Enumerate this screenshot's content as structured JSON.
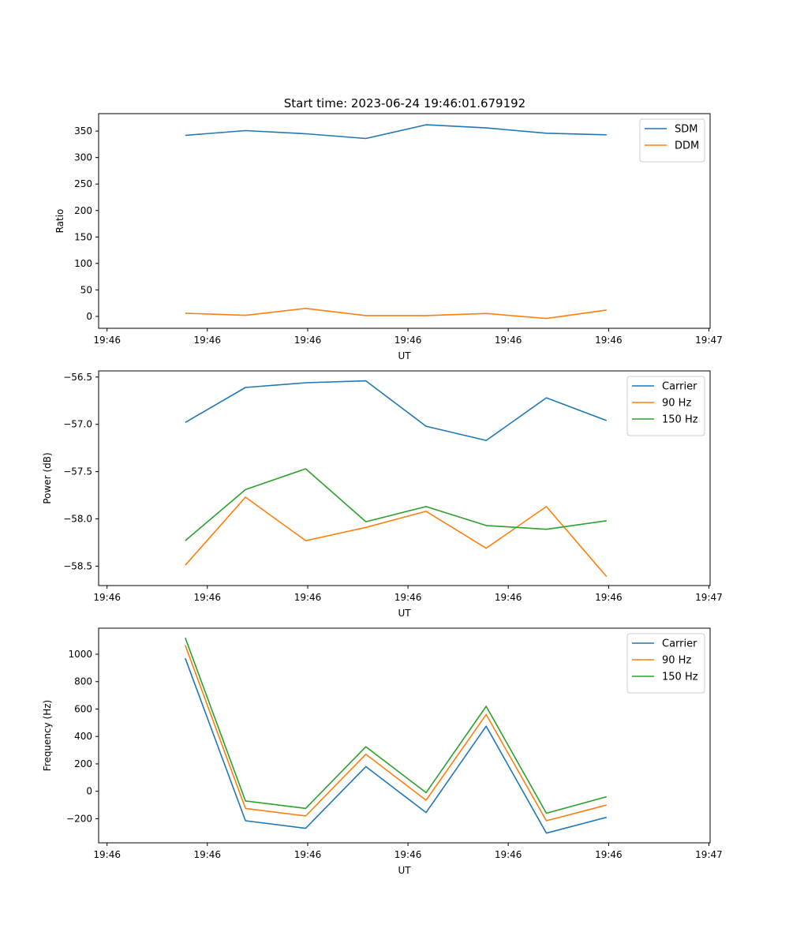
{
  "figure": {
    "title": "Start time: 2023-06-24 19:46:01.679192"
  },
  "chart_data": [
    {
      "type": "line",
      "title": "Start time: 2023-06-24 19:46:01.679192",
      "xlabel": "UT",
      "ylabel": "Ratio",
      "x": [
        0.65,
        1.15,
        1.65,
        2.15,
        2.65,
        3.15,
        3.65,
        4.15
      ],
      "xlim": [
        -0.07,
        5.01
      ],
      "xticks": [
        0,
        0.833,
        1.667,
        2.5,
        3.333,
        4.167,
        5.0
      ],
      "xtick_labels": [
        "19:46",
        "19:46",
        "19:46",
        "19:46",
        "19:46",
        "19:46",
        "19:47"
      ],
      "ylim": [
        -22.5,
        383
      ],
      "yticks": [
        0,
        50,
        100,
        150,
        200,
        250,
        300,
        350
      ],
      "ytick_labels": [
        "0",
        "50",
        "100",
        "150",
        "200",
        "250",
        "300",
        "350"
      ],
      "legend_position": "upper-right",
      "series": [
        {
          "name": "SDM",
          "color": "#1f77b4",
          "values": [
            342,
            351,
            345,
            336,
            362,
            356,
            346,
            343
          ]
        },
        {
          "name": "DDM",
          "color": "#ff7f0e",
          "values": [
            6,
            2,
            15,
            1.5,
            1.5,
            5.5,
            -4,
            12
          ]
        }
      ]
    },
    {
      "type": "line",
      "xlabel": "UT",
      "ylabel": "Power (dB)",
      "x": [
        0.65,
        1.15,
        1.65,
        2.15,
        2.65,
        3.15,
        3.65,
        4.15
      ],
      "xlim": [
        -0.07,
        5.01
      ],
      "xticks": [
        0,
        0.833,
        1.667,
        2.5,
        3.333,
        4.167,
        5.0
      ],
      "xtick_labels": [
        "19:46",
        "19:46",
        "19:46",
        "19:46",
        "19:46",
        "19:46",
        "19:47"
      ],
      "ylim": [
        -58.705,
        -56.435
      ],
      "yticks": [
        -58.5,
        -58.0,
        -57.5,
        -57.0,
        -56.5
      ],
      "ytick_labels": [
        "−58.5",
        "−58.0",
        "−57.5",
        "−57.0",
        "−56.5"
      ],
      "legend_position": "upper-right",
      "series": [
        {
          "name": "Carrier",
          "color": "#1f77b4",
          "values": [
            -56.98,
            -56.61,
            -56.56,
            -56.54,
            -57.02,
            -57.17,
            -56.72,
            -56.96
          ]
        },
        {
          "name": "90 Hz",
          "color": "#ff7f0e",
          "values": [
            -58.49,
            -57.77,
            -58.23,
            -58.09,
            -57.92,
            -58.31,
            -57.87,
            -58.61
          ]
        },
        {
          "name": "150 Hz",
          "color": "#2ca02c",
          "values": [
            -58.23,
            -57.69,
            -57.47,
            -58.03,
            -57.87,
            -58.07,
            -58.11,
            -58.02
          ]
        }
      ]
    },
    {
      "type": "line",
      "xlabel": "UT",
      "ylabel": "Frequency (Hz)",
      "x": [
        0.65,
        1.15,
        1.65,
        2.15,
        2.65,
        3.15,
        3.65,
        4.15
      ],
      "xlim": [
        -0.07,
        5.01
      ],
      "xticks": [
        0,
        0.833,
        1.667,
        2.5,
        3.333,
        4.167,
        5.0
      ],
      "xtick_labels": [
        "19:46",
        "19:46",
        "19:46",
        "19:46",
        "19:46",
        "19:46",
        "19:47"
      ],
      "ylim": [
        -376,
        1190
      ],
      "yticks": [
        -200,
        0,
        200,
        400,
        600,
        800,
        1000
      ],
      "ytick_labels": [
        "−200",
        "0",
        "200",
        "400",
        "600",
        "800",
        "1000"
      ],
      "legend_position": "upper-right",
      "series": [
        {
          "name": "Carrier",
          "color": "#1f77b4",
          "values": [
            970,
            -215,
            -270,
            180,
            -155,
            475,
            -305,
            -190
          ]
        },
        {
          "name": "90 Hz",
          "color": "#ff7f0e",
          "values": [
            1065,
            -125,
            -180,
            270,
            -65,
            560,
            -215,
            -100
          ]
        },
        {
          "name": "150 Hz",
          "color": "#2ca02c",
          "values": [
            1120,
            -70,
            -125,
            325,
            -10,
            620,
            -160,
            -40
          ]
        }
      ]
    }
  ]
}
